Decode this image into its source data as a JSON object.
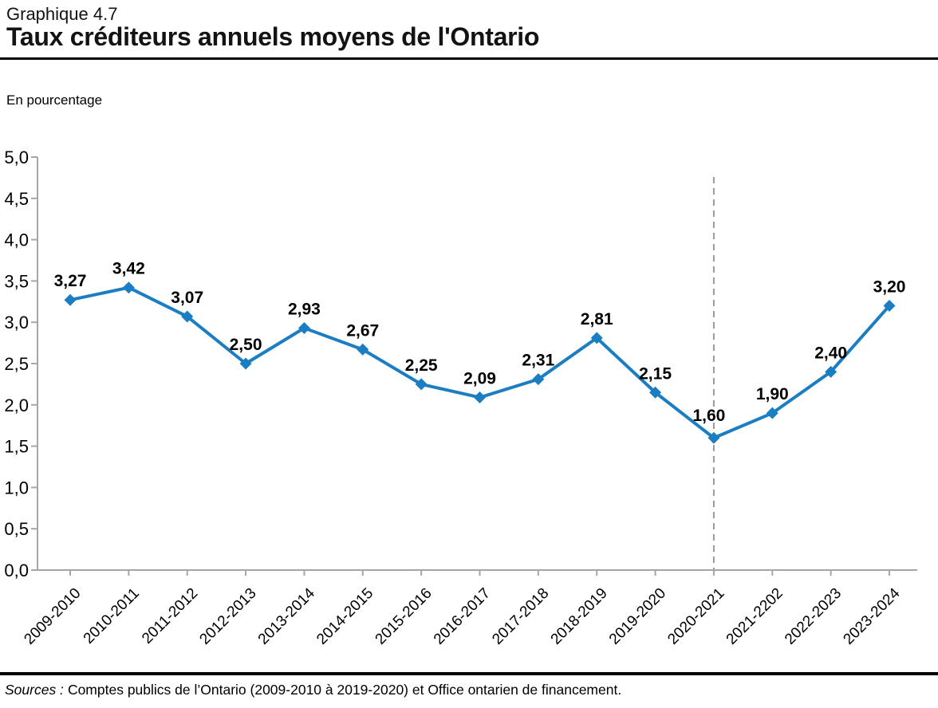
{
  "header": {
    "kicker": "Graphique 4.7",
    "title": "Taux créditeurs annuels moyens de l'Ontario"
  },
  "unit_label": "En pourcentage",
  "chart_data": {
    "type": "line",
    "title": "Taux créditeurs annuels moyens de l'Ontario",
    "unit": "En pourcentage",
    "categories": [
      "2009-2010",
      "2010-2011",
      "2011-2012",
      "2012-2013",
      "2013-2014",
      "2014-2015",
      "2015-2016",
      "2016-2017",
      "2017-2018",
      "2018-2019",
      "2019-2020",
      "2020-2021",
      "2021-2202",
      "2022-2023",
      "2023-2024"
    ],
    "values": [
      3.27,
      3.42,
      3.07,
      2.5,
      2.93,
      2.67,
      2.25,
      2.09,
      2.31,
      2.81,
      2.15,
      1.6,
      1.9,
      2.4,
      3.2
    ],
    "point_labels": [
      "3,27",
      "3,42",
      "3,07",
      "2,50",
      "2,93",
      "2,67",
      "2,25",
      "2,09",
      "2,31",
      "2,81",
      "2,15",
      "1,60",
      "1,90",
      "2,40",
      "3,20"
    ],
    "ylim": [
      0,
      5
    ],
    "ytick_step": 0.5,
    "ytick_labels": [
      "0,0",
      "0,5",
      "1,0",
      "1,5",
      "2,0",
      "2,5",
      "3,0",
      "3,5",
      "4,0",
      "4,5",
      "5,0"
    ],
    "xlabel": "",
    "ylabel": "En pourcentage",
    "grid": false,
    "legend": "none",
    "marker": "diamond",
    "dashed_vline_category": "2020-2021",
    "dashed_vline_index": 11,
    "line_color": "#1b7ec2",
    "axis_color": "#a6a6a6",
    "divider_color": "#999999",
    "label_color": "#000000"
  },
  "footer": {
    "source_label": "Sources :",
    "source_text": "Comptes publics de l’Ontario (2009-2010 à 2019-2020) et Office ontarien de financement."
  }
}
